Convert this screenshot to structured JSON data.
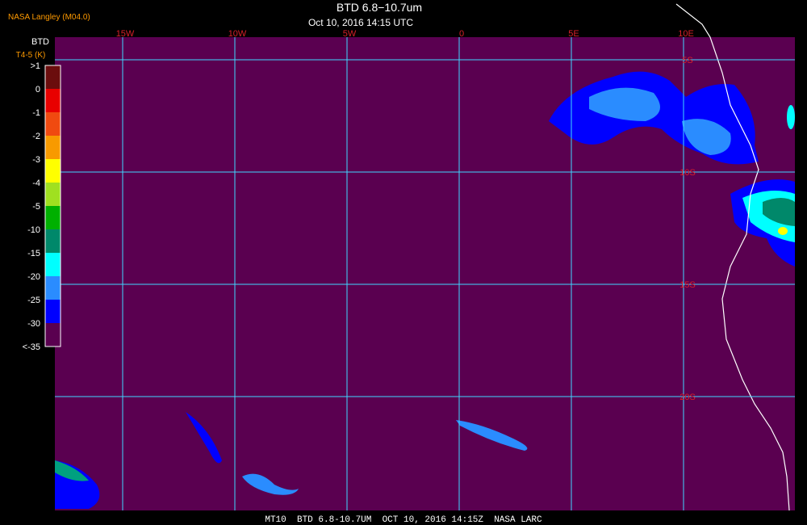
{
  "header": {
    "source": "NASA Langley (M04.0)",
    "title": "BTD 6.8−10.7um",
    "datetime": "Oct 10, 2016 14:15 UTC"
  },
  "map": {
    "longitude_labels": [
      "15W",
      "10W",
      "5W",
      "0",
      "5E",
      "10E"
    ],
    "latitude_labels": [
      "5S",
      "10S",
      "15S",
      "20S"
    ]
  },
  "legend": {
    "title": "BTD",
    "subtitle": "T4-5 (K)",
    "labels": [
      ">1",
      "0",
      "-1",
      "-2",
      "-3",
      "-4",
      "-5",
      "-10",
      "-15",
      "-20",
      "-25",
      "-30",
      "<-35"
    ],
    "colors": [
      "#6b0d0d",
      "#e80000",
      "#f04a10",
      "#f89a00",
      "#ffff00",
      "#a0e020",
      "#00b000",
      "#00886a",
      "#00ffff",
      "#2a8cff",
      "#0000ff",
      "#5a0050"
    ]
  },
  "footer": "MT10  BTD 6.8-10.7UM  OCT 10, 2016 14:15Z  NASA LARC"
}
